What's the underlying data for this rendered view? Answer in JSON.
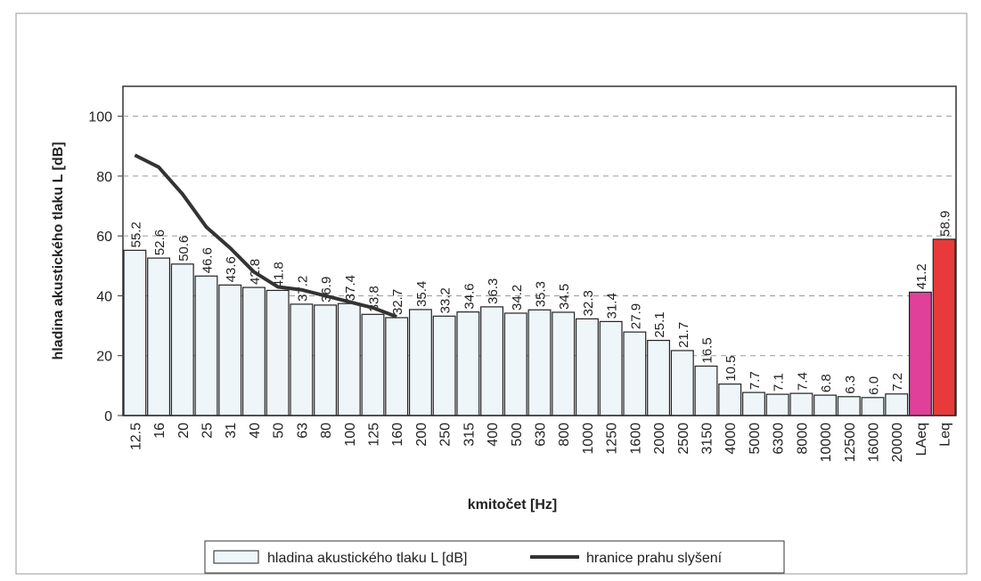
{
  "chart_data": {
    "type": "bar",
    "x_label": "kmitočet [Hz]",
    "y_label": "hladina akustického tlaku  L [dB]",
    "categories": [
      "12.5",
      "16",
      "20",
      "25",
      "31",
      "40",
      "50",
      "63",
      "80",
      "100",
      "125",
      "160",
      "200",
      "250",
      "315",
      "400",
      "500",
      "630",
      "800",
      "1000",
      "1250",
      "1600",
      "2000",
      "2500",
      "3150",
      "4000",
      "5000",
      "6300",
      "8000",
      "10000",
      "12500",
      "16000",
      "20000",
      "LAeq",
      "Leq"
    ],
    "series": [
      {
        "name": "hladina akustického tlaku L [dB]",
        "type": "bar",
        "color": "#eef6fa",
        "colors": [
          "#eef6fa",
          "#eef6fa",
          "#eef6fa",
          "#eef6fa",
          "#eef6fa",
          "#eef6fa",
          "#eef6fa",
          "#eef6fa",
          "#eef6fa",
          "#eef6fa",
          "#eef6fa",
          "#eef6fa",
          "#eef6fa",
          "#eef6fa",
          "#eef6fa",
          "#eef6fa",
          "#eef6fa",
          "#eef6fa",
          "#eef6fa",
          "#eef6fa",
          "#eef6fa",
          "#eef6fa",
          "#eef6fa",
          "#eef6fa",
          "#eef6fa",
          "#eef6fa",
          "#eef6fa",
          "#eef6fa",
          "#eef6fa",
          "#eef6fa",
          "#eef6fa",
          "#eef6fa",
          "#eef6fa",
          "#e0409a",
          "#e83a3a"
        ],
        "values": [
          55.2,
          52.6,
          50.6,
          46.6,
          43.6,
          42.8,
          41.8,
          37.2,
          36.9,
          37.4,
          33.8,
          32.7,
          35.4,
          33.2,
          34.6,
          36.3,
          34.2,
          35.3,
          34.5,
          32.3,
          31.4,
          27.9,
          25.1,
          21.7,
          16.5,
          10.5,
          7.7,
          7.1,
          7.4,
          6.8,
          6.3,
          6,
          7.2,
          41.2,
          58.9
        ],
        "value_labels": [
          "55.2",
          "52.6",
          "50.6",
          "46.6",
          "43.6",
          "42.8",
          "41.8",
          "37.2",
          "36.9",
          "37.4",
          "33.8",
          "32.7",
          "35.4",
          "33.2",
          "34.6",
          "36.3",
          "34.2",
          "35.3",
          "34.5",
          "32.3",
          "31.4",
          "27.9",
          "25.1",
          "21.7",
          "16.5",
          "10.5",
          "7.7",
          "7.1",
          "7.4",
          "6.8",
          "6.3",
          "6.0",
          "7.2",
          "41.2",
          "58.9"
        ]
      },
      {
        "name": "hranice prahu slyšení",
        "type": "line",
        "color": "#333333",
        "values": [
          87,
          83,
          74,
          63,
          56,
          48,
          43,
          42,
          40,
          38,
          36,
          33,
          null,
          null,
          null,
          null,
          null,
          null,
          null,
          null,
          null,
          null,
          null,
          null,
          null,
          null,
          null,
          null,
          null,
          null,
          null,
          null,
          null,
          null,
          null
        ]
      }
    ],
    "ylim": [
      0,
      110
    ],
    "yticks": [
      0,
      20,
      40,
      60,
      80,
      100
    ],
    "grid": true,
    "legend": "bottom"
  }
}
